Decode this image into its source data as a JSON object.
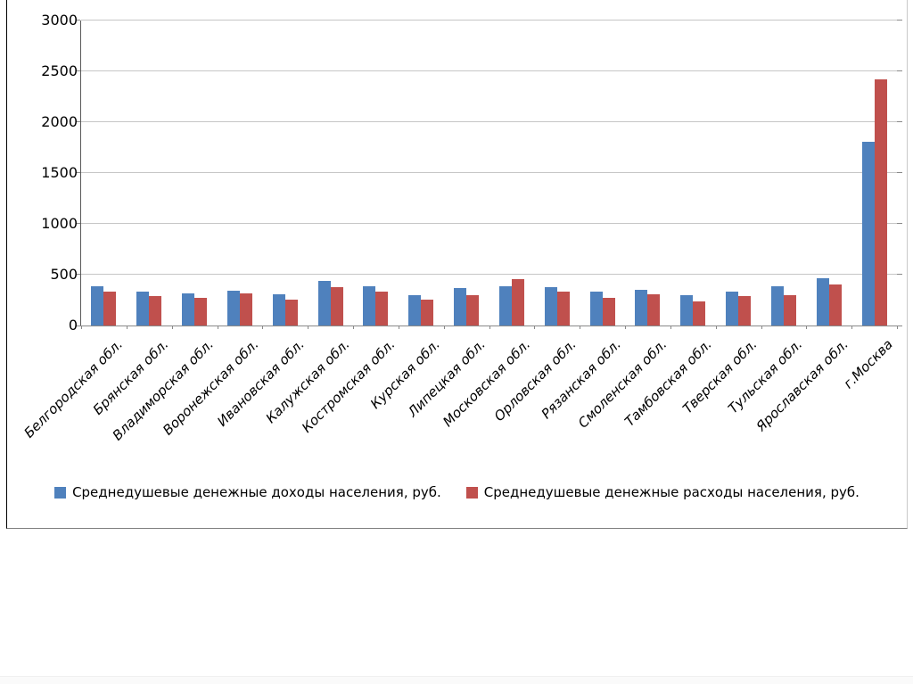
{
  "chart_data": {
    "type": "bar",
    "title": "",
    "categories": [
      "Белгородская обл.",
      "Брянская обл.",
      "Владиморская обл.",
      "Воронежская обл.",
      "Ивановская обл.",
      "Калужская обл.",
      "Костромская обл.",
      "Курская обл.",
      "Липецкая обл.",
      "Московская обл.",
      "Орловская обл.",
      "Рязанская обл.",
      "Смоленская обл.",
      "Тамбовская обл.",
      "Тверская обл.",
      "Тульская обл.",
      "Ярославская обл.",
      "г.Москва"
    ],
    "series": [
      {
        "name": "Среднедушевые денежные доходы населения, руб.",
        "color": "#4F81BD",
        "values": [
          390,
          335,
          315,
          345,
          310,
          435,
          390,
          300,
          370,
          390,
          380,
          330,
          355,
          300,
          335,
          390,
          465,
          1810
        ]
      },
      {
        "name": "Среднедушевые денежные расходы населения, руб.",
        "color": "#C0504D",
        "values": [
          330,
          290,
          270,
          315,
          255,
          380,
          330,
          255,
          300,
          460,
          330,
          275,
          310,
          240,
          290,
          300,
          405,
          2420
        ]
      }
    ],
    "xlabel": "",
    "ylabel": "",
    "ylim": [
      0,
      3000
    ],
    "ytick_step": 500,
    "grid": true,
    "legend_position": "bottom"
  },
  "colors": {
    "gridline": "#c6c6c6",
    "y_axis": "#595959",
    "x_axis": "#898989",
    "tick": "#898989",
    "text": "#000000",
    "frame_background": "#ffffff"
  }
}
